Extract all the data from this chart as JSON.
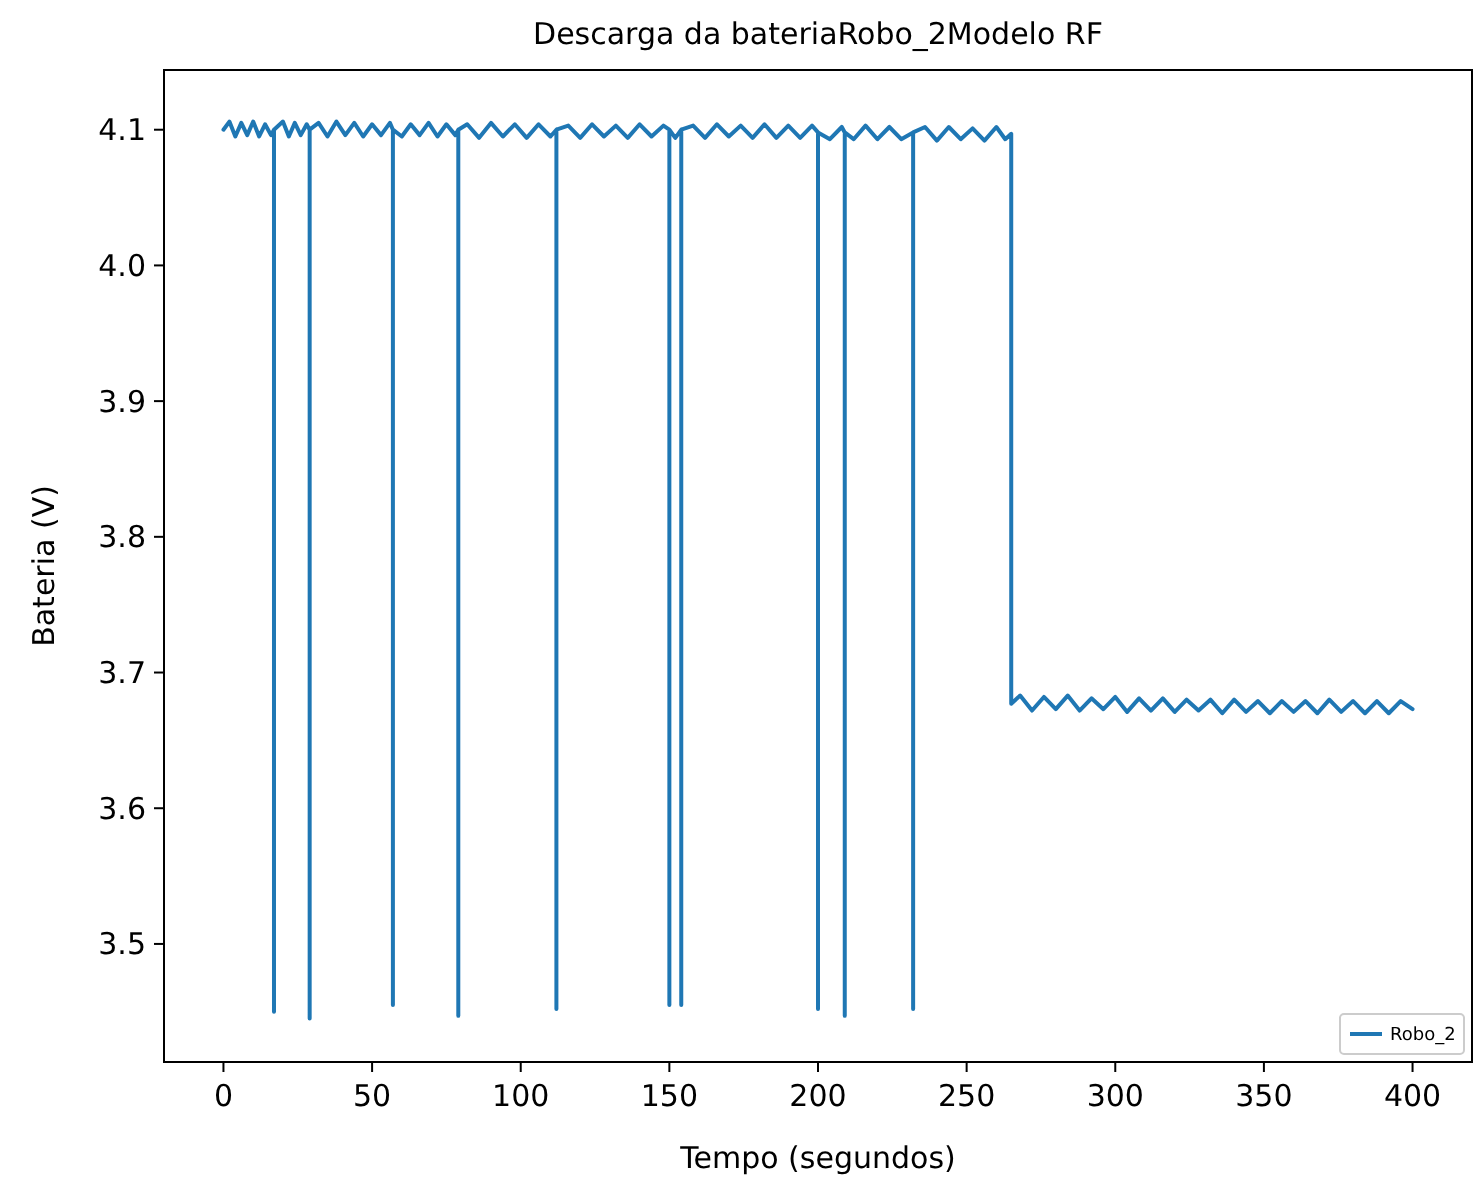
{
  "chart_data": {
    "type": "line",
    "title": "Descarga da bateriaRobo_2Modelo RF",
    "xlabel": "Tempo (segundos)",
    "ylabel": "Bateria (V)",
    "xlim": [
      -20,
      420
    ],
    "xticks": [
      0,
      50,
      100,
      150,
      200,
      250,
      300,
      350,
      400
    ],
    "ylim": [
      3.413,
      4.144
    ],
    "yticks": [
      3.5,
      3.6,
      3.7,
      3.8,
      3.9,
      {
        "value": 4.0,
        "label": "4.0"
      },
      4.1
    ],
    "grid": false,
    "legend": "bottom right",
    "marker": "none",
    "line_style": "solid",
    "series": [
      {
        "name": "Robo_2",
        "color": "#1f77b4",
        "x": [
          0,
          2,
          4,
          6,
          8,
          10,
          12,
          14,
          16,
          17,
          17,
          17,
          20,
          22,
          24,
          26,
          28,
          29,
          29,
          29,
          32,
          35,
          38,
          41,
          44,
          47,
          50,
          53,
          56,
          57,
          57,
          57,
          60,
          63,
          66,
          69,
          72,
          75,
          78,
          79,
          79,
          79,
          82,
          86,
          90,
          94,
          98,
          102,
          106,
          110,
          112,
          112,
          112,
          116,
          120,
          124,
          128,
          132,
          136,
          140,
          144,
          148,
          150,
          150,
          150,
          152,
          154,
          154,
          154,
          158,
          162,
          166,
          170,
          174,
          178,
          182,
          186,
          190,
          194,
          198,
          200,
          200,
          200,
          204,
          208,
          209,
          209,
          209,
          212,
          216,
          220,
          224,
          228,
          232,
          232,
          232,
          236,
          240,
          244,
          248,
          252,
          256,
          260,
          263,
          265,
          265,
          268,
          272,
          276,
          280,
          284,
          288,
          292,
          296,
          300,
          304,
          308,
          312,
          316,
          320,
          324,
          328,
          332,
          336,
          340,
          344,
          348,
          352,
          356,
          360,
          364,
          368,
          372,
          376,
          380,
          384,
          388,
          392,
          396,
          400
        ],
        "values": [
          4.1,
          4.106,
          4.095,
          4.105,
          4.096,
          4.106,
          4.095,
          4.104,
          4.096,
          4.1,
          3.45,
          4.1,
          4.106,
          4.095,
          4.105,
          4.096,
          4.104,
          4.1,
          3.445,
          4.1,
          4.105,
          4.095,
          4.106,
          4.096,
          4.105,
          4.095,
          4.104,
          4.096,
          4.105,
          4.1,
          3.455,
          4.1,
          4.095,
          4.104,
          4.096,
          4.105,
          4.095,
          4.104,
          4.096,
          4.1,
          3.447,
          4.1,
          4.104,
          4.094,
          4.105,
          4.095,
          4.104,
          4.094,
          4.104,
          4.095,
          4.1,
          3.452,
          4.1,
          4.103,
          4.094,
          4.104,
          4.095,
          4.103,
          4.094,
          4.104,
          4.095,
          4.103,
          4.1,
          3.455,
          4.1,
          4.094,
          4.1,
          3.455,
          4.1,
          4.103,
          4.094,
          4.104,
          4.095,
          4.103,
          4.094,
          4.104,
          4.094,
          4.103,
          4.094,
          4.103,
          4.098,
          3.452,
          4.098,
          4.093,
          4.102,
          4.098,
          3.447,
          4.098,
          4.093,
          4.103,
          4.093,
          4.102,
          4.093,
          4.098,
          3.452,
          4.098,
          4.102,
          4.092,
          4.102,
          4.093,
          4.101,
          4.092,
          4.102,
          4.093,
          4.097,
          3.677,
          3.683,
          3.672,
          3.682,
          3.673,
          3.683,
          3.672,
          3.681,
          3.673,
          3.682,
          3.671,
          3.681,
          3.672,
          3.681,
          3.671,
          3.68,
          3.672,
          3.68,
          3.67,
          3.68,
          3.671,
          3.679,
          3.67,
          3.679,
          3.671,
          3.679,
          3.67,
          3.68,
          3.671,
          3.679,
          3.67,
          3.679,
          3.67,
          3.679,
          3.673
        ]
      }
    ]
  }
}
